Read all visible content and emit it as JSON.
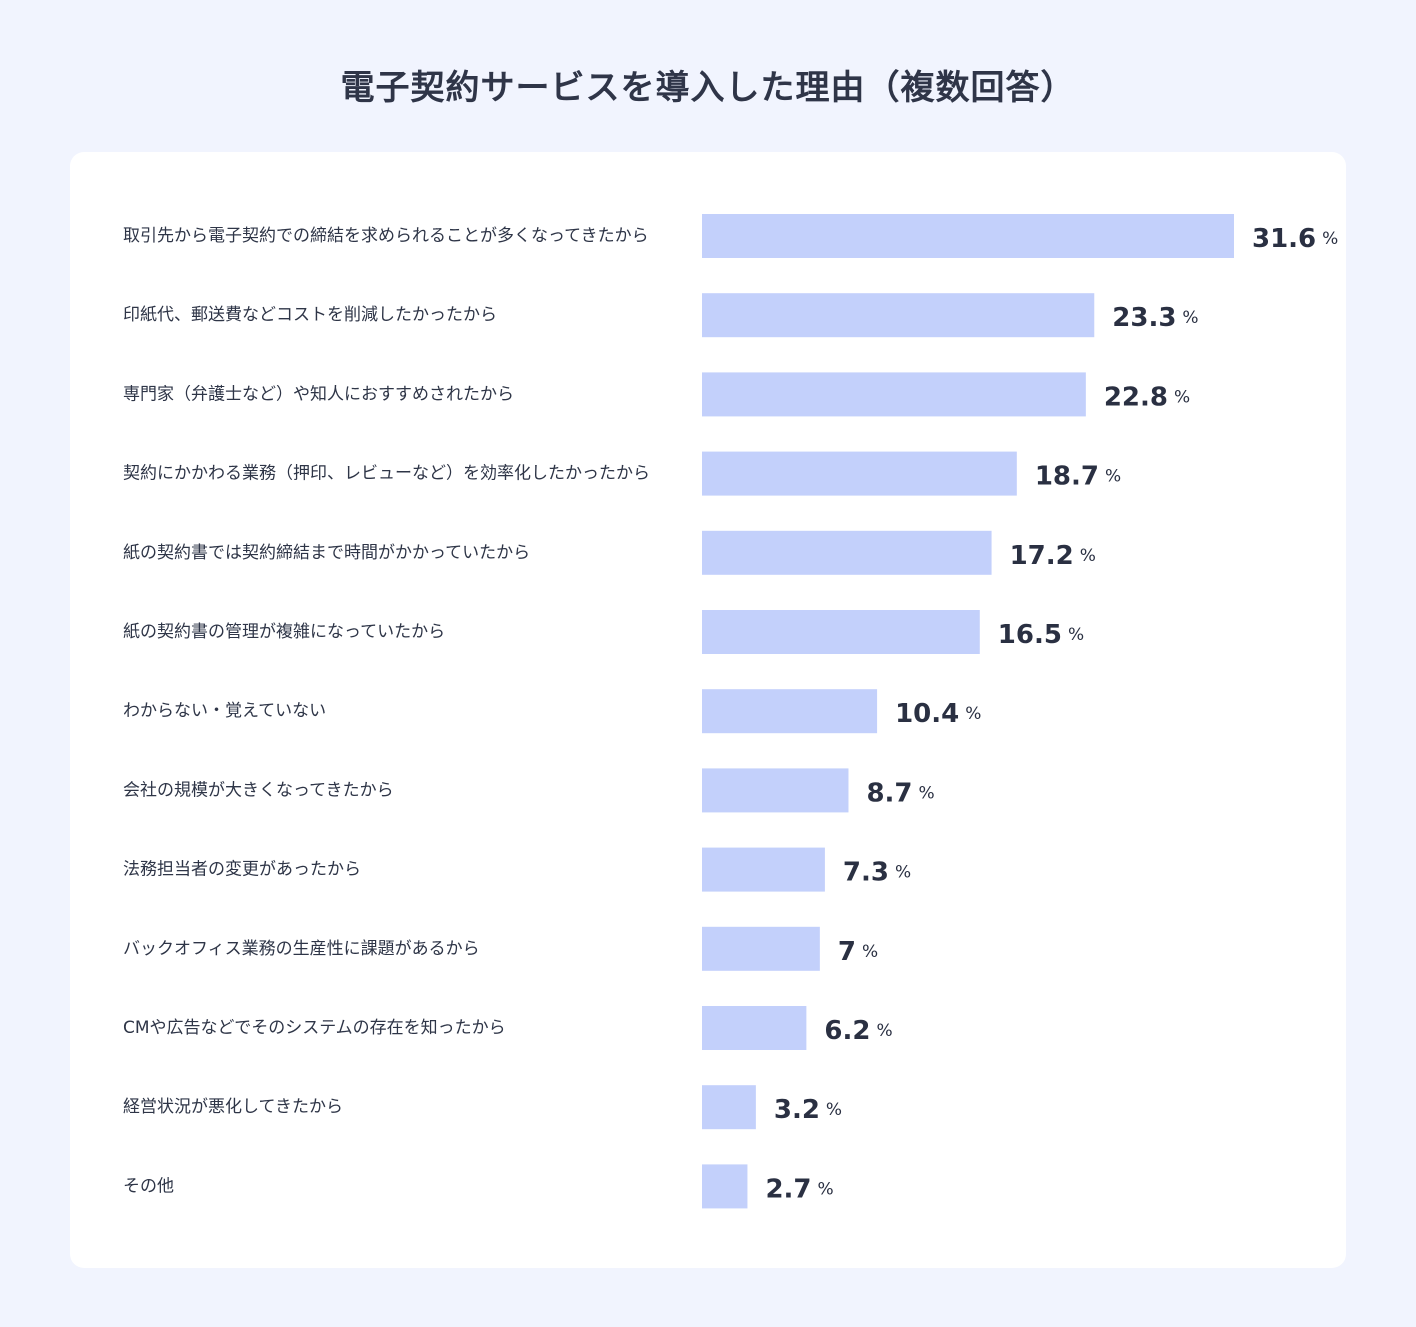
{
  "title": "電子契約サービスを導入した理由（複数回答）",
  "chart_data": {
    "type": "bar",
    "orientation": "horizontal",
    "title": "電子契約サービスを導入した理由（複数回答）",
    "unit": "%",
    "bar_color": "#c3d0fb",
    "xlim": [
      0,
      31.6
    ],
    "categories": [
      "取引先から電子契約での締結を求められることが多くなってきたから",
      "印紙代、郵送費などコストを削減したかったから",
      "専門家（弁護士など）や知人におすすめされたから",
      "契約にかかわる業務（押印、レビューなど）を効率化したかったから",
      "紙の契約書では契約締結まで時間がかかっていたから",
      "紙の契約書の管理が複雑になっていたから",
      "わからない・覚えていない",
      "会社の規模が大きくなってきたから",
      "法務担当者の変更があったから",
      "バックオフィス業務の生産性に課題があるから",
      "CMや広告などでそのシステムの存在を知ったから",
      "経営状況が悪化してきたから",
      "その他"
    ],
    "values": [
      31.6,
      23.3,
      22.8,
      18.7,
      17.2,
      16.5,
      10.4,
      8.7,
      7.3,
      7,
      6.2,
      3.2,
      2.7
    ],
    "grid": false,
    "legend": "none"
  }
}
